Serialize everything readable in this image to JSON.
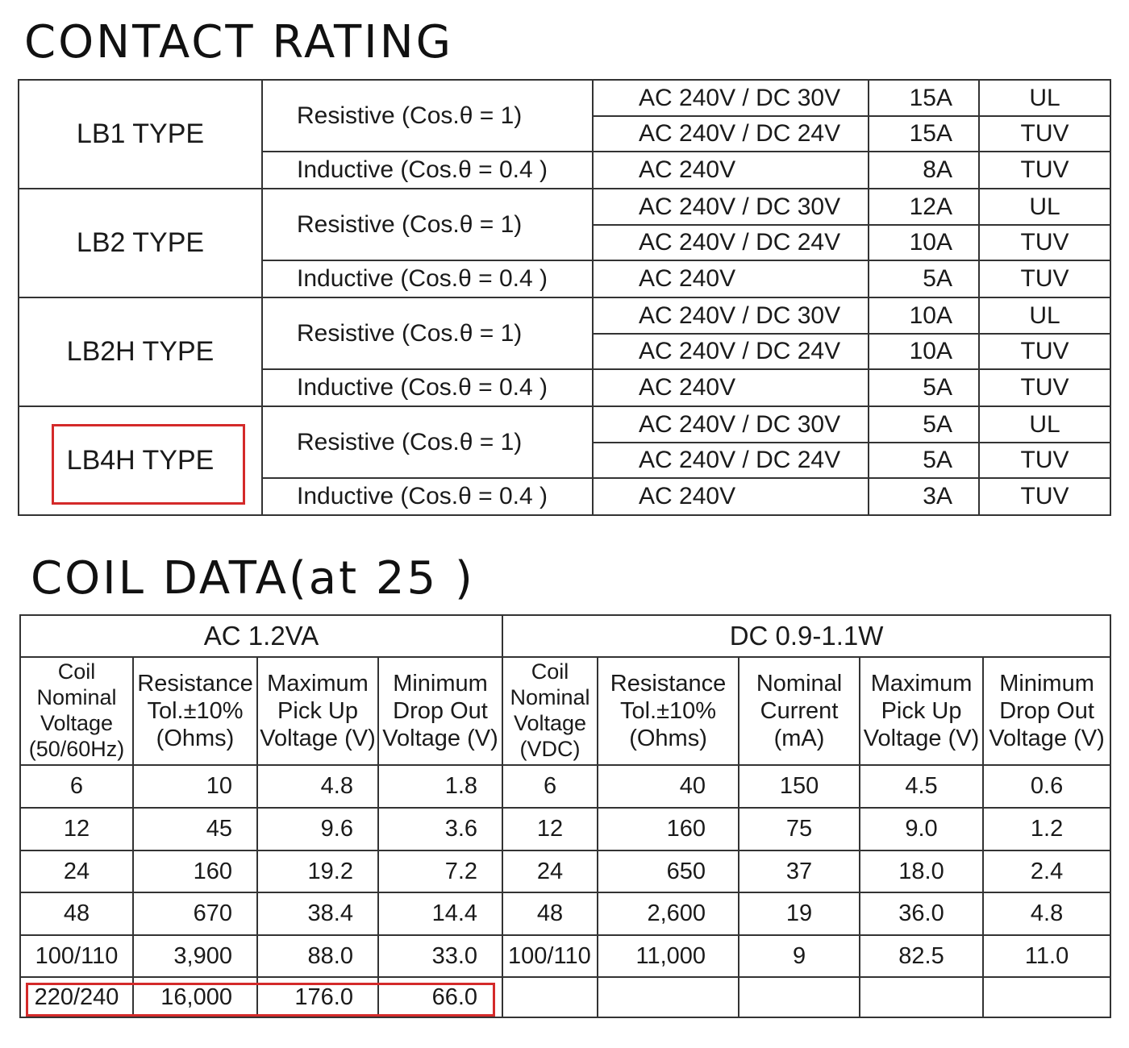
{
  "contact": {
    "title": "CONTACT RATING",
    "types": [
      {
        "name": "LB1 TYPE",
        "resistive_label": "Resistive (Cos.θ = 1)",
        "inductive_label": "Inductive (Cos.θ = 0.4 )",
        "rows": [
          {
            "voltage": "AC 240V / DC 30V",
            "current": "15A",
            "standard": "UL"
          },
          {
            "voltage": "AC 240V / DC 24V",
            "current": "15A",
            "standard": "TUV"
          },
          {
            "voltage": "AC 240V",
            "current": "8A",
            "standard": "TUV"
          }
        ]
      },
      {
        "name": "LB2 TYPE",
        "resistive_label": "Resistive (Cos.θ = 1)",
        "inductive_label": "Inductive (Cos.θ = 0.4 )",
        "rows": [
          {
            "voltage": "AC 240V / DC 30V",
            "current": "12A",
            "standard": "UL"
          },
          {
            "voltage": "AC 240V / DC 24V",
            "current": "10A",
            "standard": "TUV"
          },
          {
            "voltage": "AC 240V",
            "current": "5A",
            "standard": "TUV"
          }
        ]
      },
      {
        "name": "LB2H TYPE",
        "resistive_label": "Resistive (Cos.θ = 1)",
        "inductive_label": "Inductive (Cos.θ = 0.4 )",
        "rows": [
          {
            "voltage": "AC 240V / DC 30V",
            "current": "10A",
            "standard": "UL"
          },
          {
            "voltage": "AC 240V / DC 24V",
            "current": "10A",
            "standard": "TUV"
          },
          {
            "voltage": "AC 240V",
            "current": "5A",
            "standard": "TUV"
          }
        ]
      },
      {
        "name": "LB4H TYPE",
        "resistive_label": "Resistive (Cos.θ = 1)",
        "inductive_label": "Inductive (Cos.θ = 0.4 )",
        "rows": [
          {
            "voltage": "AC 240V / DC 30V",
            "current": "5A",
            "standard": "UL"
          },
          {
            "voltage": "AC 240V / DC 24V",
            "current": "5A",
            "standard": "TUV"
          },
          {
            "voltage": "AC 240V",
            "current": "3A",
            "standard": "TUV"
          }
        ]
      }
    ]
  },
  "coil": {
    "title": "COIL DATA(at 25 )",
    "ac_header": "AC  1.2VA",
    "dc_header": "DC  0.9-1.1W",
    "ac_columns": [
      [
        "Coil",
        "Nominal",
        "Voltage",
        "(50/60Hz)"
      ],
      [
        "Resistance",
        "Tol.±10%",
        "(Ohms)"
      ],
      [
        "Maximum",
        "Pick Up",
        "Voltage (V)"
      ],
      [
        "Minimum",
        "Drop Out",
        "Voltage (V)"
      ]
    ],
    "dc_columns": [
      [
        "Coil",
        "Nominal",
        "Voltage",
        "(VDC)"
      ],
      [
        "Resistance",
        "Tol.±10%",
        "(Ohms)"
      ],
      [
        "Nominal",
        "Current",
        "(mA)"
      ],
      [
        "Maximum",
        "Pick Up",
        "Voltage (V)"
      ],
      [
        "Minimum",
        "Drop Out",
        "Voltage (V)"
      ]
    ],
    "rows": [
      {
        "ac": [
          "6",
          "10",
          "4.8",
          "1.8"
        ],
        "dc": [
          "6",
          "40",
          "150",
          "4.5",
          "0.6"
        ]
      },
      {
        "ac": [
          "12",
          "45",
          "9.6",
          "3.6"
        ],
        "dc": [
          "12",
          "160",
          "75",
          "9.0",
          "1.2"
        ]
      },
      {
        "ac": [
          "24",
          "160",
          "19.2",
          "7.2"
        ],
        "dc": [
          "24",
          "650",
          "37",
          "18.0",
          "2.4"
        ]
      },
      {
        "ac": [
          "48",
          "670",
          "38.4",
          "14.4"
        ],
        "dc": [
          "48",
          "2,600",
          "19",
          "36.0",
          "4.8"
        ]
      },
      {
        "ac": [
          "100/110",
          "3,900",
          "88.0",
          "33.0"
        ],
        "dc": [
          "100/110",
          "11,000",
          "9",
          "82.5",
          "11.0"
        ]
      },
      {
        "ac": [
          "220/240",
          "16,000",
          "176.0",
          "66.0"
        ],
        "dc": [
          "",
          "",
          "",
          "",
          ""
        ]
      }
    ]
  },
  "highlights": {
    "color": "#d42a2a",
    "items": [
      "LB4H TYPE",
      "220/240"
    ]
  }
}
